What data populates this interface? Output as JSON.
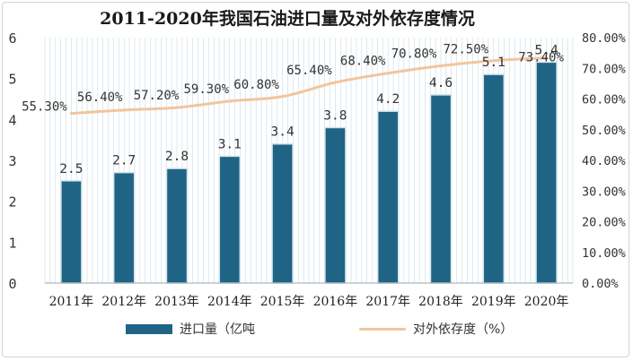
{
  "colors": {
    "bar": "#1f6484",
    "bar_edge": "#cfe3ec",
    "line": "#f2c59c",
    "grid": "#c5dbe6",
    "text": "#333333"
  },
  "chart_data": {
    "type": "bar",
    "title": "2011-2020年我国石油进口量及对外依存度情况",
    "categories": [
      "2011年",
      "2012年",
      "2013年",
      "2014年",
      "2015年",
      "2016年",
      "2017年",
      "2018年",
      "2019年",
      "2020年"
    ],
    "series": [
      {
        "name": "进口量（亿吨",
        "type": "bar",
        "axis": "left",
        "values": [
          2.5,
          2.7,
          2.8,
          3.1,
          3.4,
          3.8,
          4.2,
          4.6,
          5.1,
          5.4
        ],
        "labels": [
          "2.5",
          "2.7",
          "2.8",
          "3.1",
          "3.4",
          "3.8",
          "4.2",
          "4.6",
          "5.1",
          "5.4"
        ]
      },
      {
        "name": "对外依存度（%）",
        "type": "line",
        "axis": "right",
        "values": [
          55.3,
          56.4,
          57.2,
          59.3,
          60.8,
          65.4,
          68.4,
          70.8,
          72.5,
          73.4
        ],
        "labels": [
          "55.30%",
          "56.40%",
          "57.20%",
          "59.30%",
          "60.80%",
          "65.40%",
          "68.40%",
          "70.80%",
          "72.50%",
          "73.40%"
        ]
      }
    ],
    "y_left": {
      "min": 0,
      "max": 6,
      "ticks": [
        "0",
        "1",
        "2",
        "3",
        "4",
        "5",
        "6"
      ]
    },
    "y_right": {
      "min": 0,
      "max": 80,
      "ticks": [
        "0.00%",
        "10.00%",
        "20.00%",
        "30.00%",
        "40.00%",
        "50.00%",
        "60.00%",
        "70.00%",
        "80.00%"
      ]
    },
    "grid": "vertical",
    "legend": "bottom"
  }
}
